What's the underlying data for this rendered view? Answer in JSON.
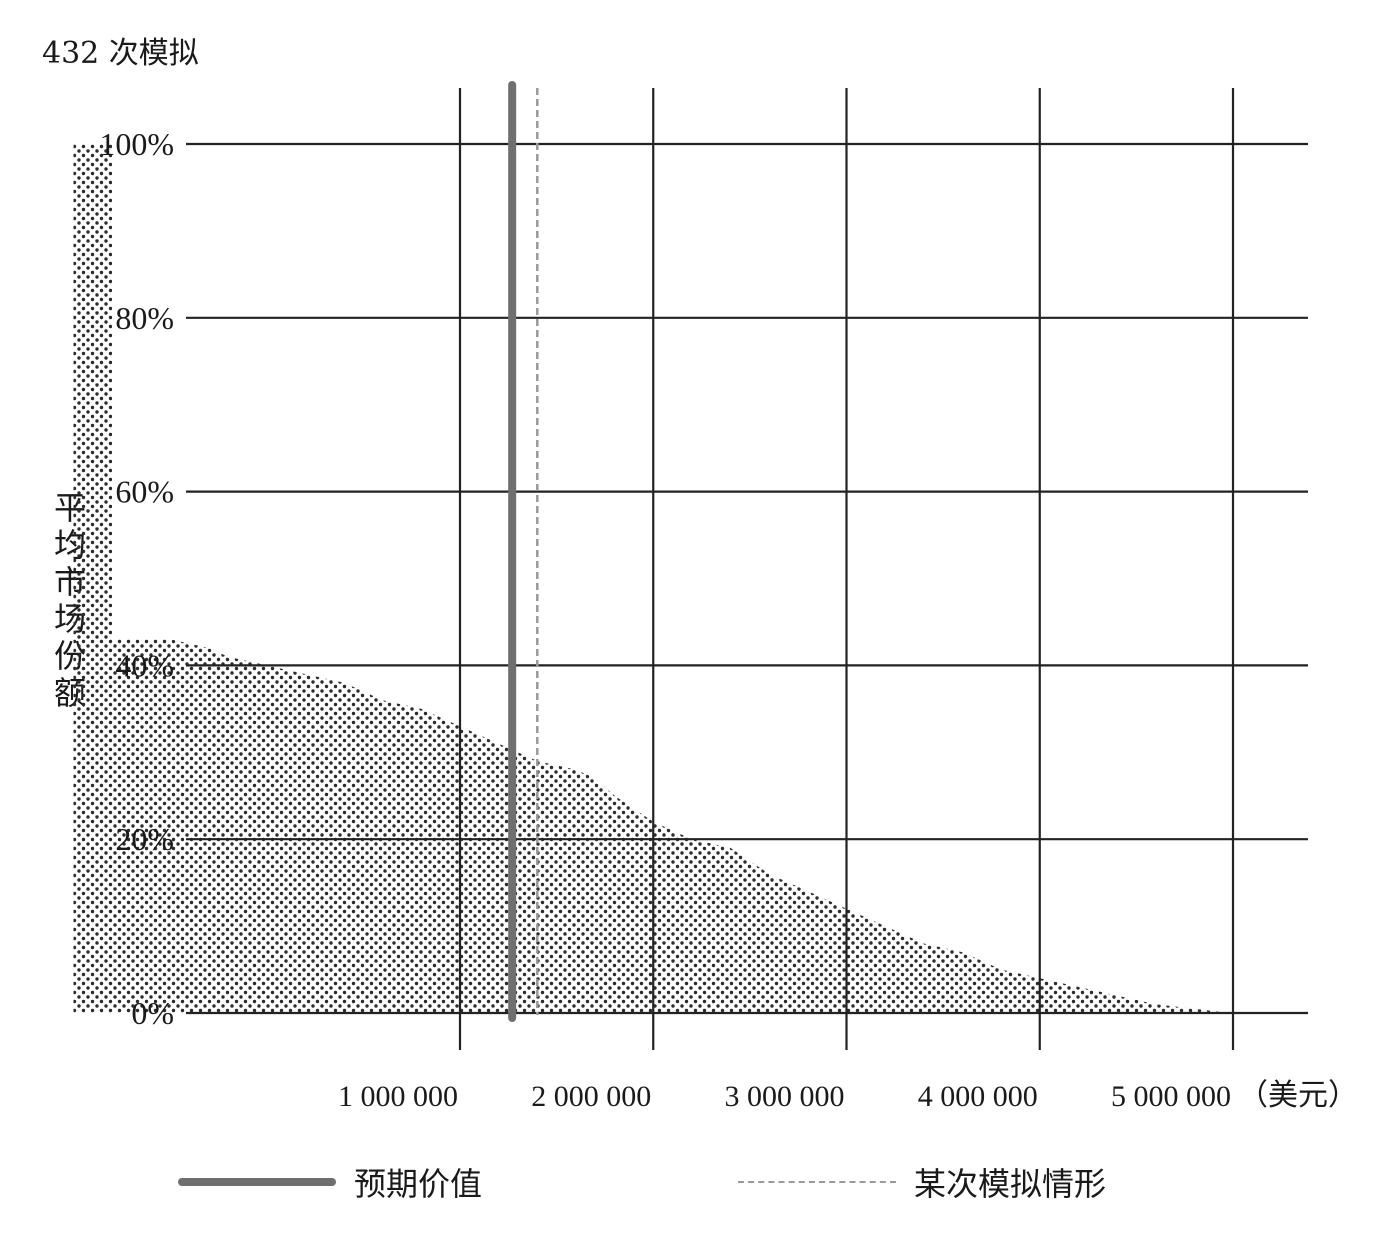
{
  "chart_data": {
    "type": "area",
    "title": "432 次模拟",
    "ylabel": "平均市场份额",
    "x_unit": "（美元）",
    "x_tick_labels": [
      "1 000 000",
      "2 000 000",
      "3 000 000",
      "4 000 000",
      "5 000 000"
    ],
    "x_ticks": [
      1000000,
      2000000,
      3000000,
      4000000,
      5000000
    ],
    "y_tick_labels": [
      "0%",
      "20%",
      "40%",
      "60%",
      "80%",
      "100%"
    ],
    "y_ticks": [
      0,
      20,
      40,
      60,
      80,
      100
    ],
    "xlim": [
      -1200000,
      5400000
    ],
    "ylim": [
      0,
      100
    ],
    "grid": true,
    "fill_pattern": "dotted",
    "series": [
      {
        "name": "平均市场份额",
        "x": [
          -1000000,
          -800000,
          -800000,
          -500000,
          -300000,
          -200000,
          0,
          200000,
          400000,
          500000,
          600000,
          800000,
          1000000,
          1200000,
          1400000,
          1600000,
          1700000,
          1800000,
          2000000,
          2200000,
          2400000,
          2600000,
          2800000,
          3000000,
          3200000,
          3400000,
          3600000,
          3800000,
          4000000,
          4200000,
          4400000,
          4600000,
          4800000,
          4980000
        ],
        "values": [
          100,
          100,
          43,
          43,
          42,
          41,
          40,
          39,
          38,
          37,
          36,
          35,
          33,
          31,
          29,
          28,
          27,
          25,
          22,
          20,
          19,
          16,
          14,
          12,
          10,
          8,
          7,
          5,
          4,
          3,
          2,
          1,
          0.5,
          0
        ]
      }
    ],
    "markers": [
      {
        "name": "预期价值",
        "x": 1270000,
        "style": "solid",
        "color": "#6f6f6f"
      },
      {
        "name": "某次模拟情形",
        "x": 1400000,
        "style": "dashed",
        "color": "#9a9a9a"
      }
    ]
  },
  "legend": {
    "expected_label": "预期价值",
    "simulation_label": "某次模拟情形"
  },
  "colors": {
    "grid": "#222222",
    "dots": "#2b2b2b",
    "expected_line": "#6f6f6f",
    "simulation_line": "#9a9a9a"
  }
}
